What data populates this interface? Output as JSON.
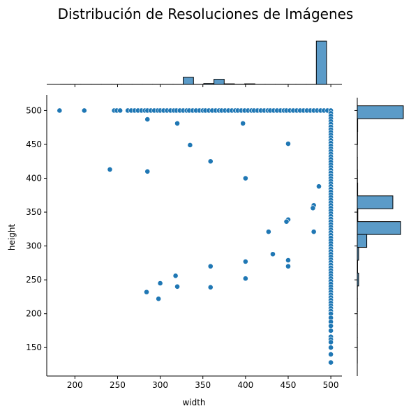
{
  "chart_data": {
    "type": "scatter",
    "title": "Distribución de Resoluciones de Imágenes",
    "xlabel": "width",
    "ylabel": "height",
    "xlim": [
      167,
      513
    ],
    "ylim": [
      108,
      519
    ],
    "xticks": [
      200,
      250,
      300,
      350,
      400,
      450,
      500
    ],
    "yticks": [
      150,
      200,
      250,
      300,
      350,
      400,
      450,
      500
    ],
    "grid": false,
    "colors": {
      "points": "#1f77b4",
      "bars": "#5b9bc8",
      "edge": "#000000"
    },
    "points": [
      [
        182,
        500
      ],
      [
        211,
        500
      ],
      [
        246,
        500
      ],
      [
        249,
        500
      ],
      [
        253,
        500
      ],
      [
        262,
        500
      ],
      [
        266,
        500
      ],
      [
        270,
        500
      ],
      [
        274,
        500
      ],
      [
        278,
        500
      ],
      [
        282,
        500
      ],
      [
        285,
        500
      ],
      [
        289,
        500
      ],
      [
        293,
        500
      ],
      [
        297,
        500
      ],
      [
        300,
        500
      ],
      [
        304,
        500
      ],
      [
        308,
        500
      ],
      [
        312,
        500
      ],
      [
        316,
        500
      ],
      [
        319,
        500
      ],
      [
        323,
        500
      ],
      [
        327,
        500
      ],
      [
        331,
        500
      ],
      [
        334,
        500
      ],
      [
        338,
        500
      ],
      [
        342,
        500
      ],
      [
        346,
        500
      ],
      [
        350,
        500
      ],
      [
        353,
        500
      ],
      [
        357,
        500
      ],
      [
        361,
        500
      ],
      [
        365,
        500
      ],
      [
        369,
        500
      ],
      [
        372,
        500
      ],
      [
        376,
        500
      ],
      [
        380,
        500
      ],
      [
        384,
        500
      ],
      [
        388,
        500
      ],
      [
        391,
        500
      ],
      [
        395,
        500
      ],
      [
        399,
        500
      ],
      [
        403,
        500
      ],
      [
        407,
        500
      ],
      [
        410,
        500
      ],
      [
        414,
        500
      ],
      [
        418,
        500
      ],
      [
        422,
        500
      ],
      [
        426,
        500
      ],
      [
        429,
        500
      ],
      [
        433,
        500
      ],
      [
        437,
        500
      ],
      [
        441,
        500
      ],
      [
        445,
        500
      ],
      [
        448,
        500
      ],
      [
        452,
        500
      ],
      [
        456,
        500
      ],
      [
        460,
        500
      ],
      [
        464,
        500
      ],
      [
        468,
        500
      ],
      [
        472,
        500
      ],
      [
        476,
        500
      ],
      [
        480,
        500
      ],
      [
        484,
        500
      ],
      [
        488,
        500
      ],
      [
        492,
        500
      ],
      [
        496,
        500
      ],
      [
        285,
        487
      ],
      [
        320,
        481
      ],
      [
        397,
        481
      ],
      [
        335,
        449
      ],
      [
        450,
        451
      ],
      [
        359,
        425
      ],
      [
        241,
        413
      ],
      [
        285,
        410
      ],
      [
        400,
        400
      ],
      [
        486,
        388
      ],
      [
        480,
        360
      ],
      [
        479,
        356
      ],
      [
        450,
        339
      ],
      [
        448,
        336
      ],
      [
        427,
        321
      ],
      [
        480,
        321
      ],
      [
        432,
        288
      ],
      [
        450,
        279
      ],
      [
        450,
        270
      ],
      [
        400,
        277
      ],
      [
        359,
        270
      ],
      [
        318,
        256
      ],
      [
        400,
        252
      ],
      [
        300,
        245
      ],
      [
        320,
        240
      ],
      [
        359,
        239
      ],
      [
        284,
        232
      ],
      [
        298,
        222
      ],
      [
        500,
        500
      ],
      [
        500,
        496
      ],
      [
        500,
        492
      ],
      [
        500,
        488
      ],
      [
        500,
        484
      ],
      [
        500,
        480
      ],
      [
        500,
        476
      ],
      [
        500,
        472
      ],
      [
        500,
        468
      ],
      [
        500,
        464
      ],
      [
        500,
        460
      ],
      [
        500,
        456
      ],
      [
        500,
        452
      ],
      [
        500,
        448
      ],
      [
        500,
        444
      ],
      [
        500,
        440
      ],
      [
        500,
        436
      ],
      [
        500,
        432
      ],
      [
        500,
        428
      ],
      [
        500,
        424
      ],
      [
        500,
        420
      ],
      [
        500,
        416
      ],
      [
        500,
        412
      ],
      [
        500,
        408
      ],
      [
        500,
        404
      ],
      [
        500,
        400
      ],
      [
        500,
        396
      ],
      [
        500,
        392
      ],
      [
        500,
        388
      ],
      [
        500,
        384
      ],
      [
        500,
        380
      ],
      [
        500,
        376
      ],
      [
        500,
        372
      ],
      [
        500,
        368
      ],
      [
        500,
        364
      ],
      [
        500,
        360
      ],
      [
        500,
        356
      ],
      [
        500,
        352
      ],
      [
        500,
        348
      ],
      [
        500,
        344
      ],
      [
        500,
        340
      ],
      [
        500,
        336
      ],
      [
        500,
        332
      ],
      [
        500,
        328
      ],
      [
        500,
        324
      ],
      [
        500,
        320
      ],
      [
        500,
        316
      ],
      [
        500,
        312
      ],
      [
        500,
        308
      ],
      [
        500,
        304
      ],
      [
        500,
        300
      ],
      [
        500,
        296
      ],
      [
        500,
        292
      ],
      [
        500,
        288
      ],
      [
        500,
        284
      ],
      [
        500,
        280
      ],
      [
        500,
        276
      ],
      [
        500,
        272
      ],
      [
        500,
        268
      ],
      [
        500,
        264
      ],
      [
        500,
        260
      ],
      [
        500,
        256
      ],
      [
        500,
        252
      ],
      [
        500,
        248
      ],
      [
        500,
        244
      ],
      [
        500,
        240
      ],
      [
        500,
        236
      ],
      [
        500,
        232
      ],
      [
        500,
        228
      ],
      [
        500,
        224
      ],
      [
        500,
        220
      ],
      [
        500,
        216
      ],
      [
        500,
        212
      ],
      [
        500,
        208
      ],
      [
        500,
        204
      ],
      [
        500,
        200
      ],
      [
        500,
        194
      ],
      [
        500,
        188
      ],
      [
        500,
        182
      ],
      [
        500,
        175
      ],
      [
        500,
        166
      ],
      [
        500,
        162
      ],
      [
        500,
        158
      ],
      [
        500,
        150
      ],
      [
        500,
        140
      ],
      [
        500,
        128
      ]
    ],
    "x_hist": {
      "bins": [
        [
          183,
          195,
          1
        ],
        [
          195,
          207,
          1
        ],
        [
          207,
          219,
          1
        ],
        [
          219,
          231,
          1
        ],
        [
          231,
          243,
          1
        ],
        [
          243,
          255,
          1
        ],
        [
          255,
          267,
          1
        ],
        [
          267,
          279,
          1
        ],
        [
          279,
          291,
          1
        ],
        [
          291,
          303,
          1
        ],
        [
          303,
          315,
          1
        ],
        [
          315,
          327,
          1
        ],
        [
          327,
          339,
          95
        ],
        [
          339,
          351,
          1
        ],
        [
          351,
          363,
          12
        ],
        [
          363,
          375,
          68
        ],
        [
          375,
          387,
          8
        ],
        [
          387,
          399,
          2
        ],
        [
          399,
          411,
          8
        ],
        [
          411,
          423,
          1
        ],
        [
          423,
          435,
          1
        ],
        [
          435,
          447,
          1
        ],
        [
          447,
          459,
          1
        ],
        [
          459,
          471,
          1
        ],
        [
          471,
          483,
          1
        ],
        [
          483,
          495,
          570
        ]
      ]
    },
    "y_hist": {
      "bins": [
        [
          488,
          507,
          680
        ],
        [
          469,
          488,
          6
        ],
        [
          450,
          469,
          4
        ],
        [
          431,
          450,
          1
        ],
        [
          412,
          431,
          2
        ],
        [
          393,
          412,
          3
        ],
        [
          374,
          393,
          6
        ],
        [
          355,
          374,
          525
        ],
        [
          336,
          355,
          8
        ],
        [
          317,
          336,
          640
        ],
        [
          298,
          317,
          140
        ],
        [
          279,
          298,
          20
        ],
        [
          260,
          279,
          5
        ],
        [
          241,
          260,
          20
        ],
        [
          222,
          241,
          2
        ],
        [
          203,
          222,
          2
        ],
        [
          184,
          203,
          1
        ],
        [
          165,
          184,
          1
        ],
        [
          146,
          165,
          1
        ],
        [
          127,
          146,
          1
        ]
      ]
    }
  }
}
